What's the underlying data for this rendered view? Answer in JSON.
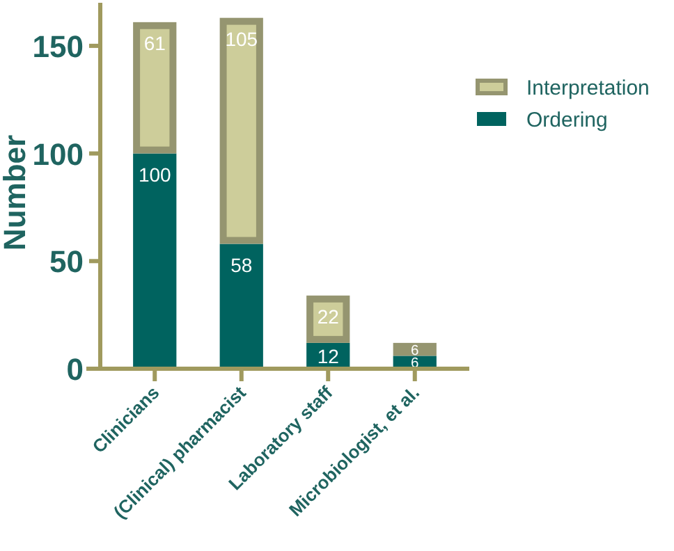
{
  "chart_data": {
    "type": "bar",
    "stacked": true,
    "ylabel": "Number",
    "categories": [
      "Clinicians",
      "(Clinical) pharmacist",
      "Laboratory staff",
      "Microbiologist, et al."
    ],
    "series": [
      {
        "name": "Ordering",
        "color": "#00635f",
        "values": [
          100,
          58,
          12,
          6
        ]
      },
      {
        "name": "Interpretation",
        "color": "#cdcd9a",
        "values": [
          61,
          105,
          22,
          6
        ]
      }
    ],
    "ylim": [
      0,
      170
    ],
    "yticks": [
      0,
      50,
      100,
      150
    ],
    "data_labels": true,
    "legend": "right",
    "grid": false
  }
}
